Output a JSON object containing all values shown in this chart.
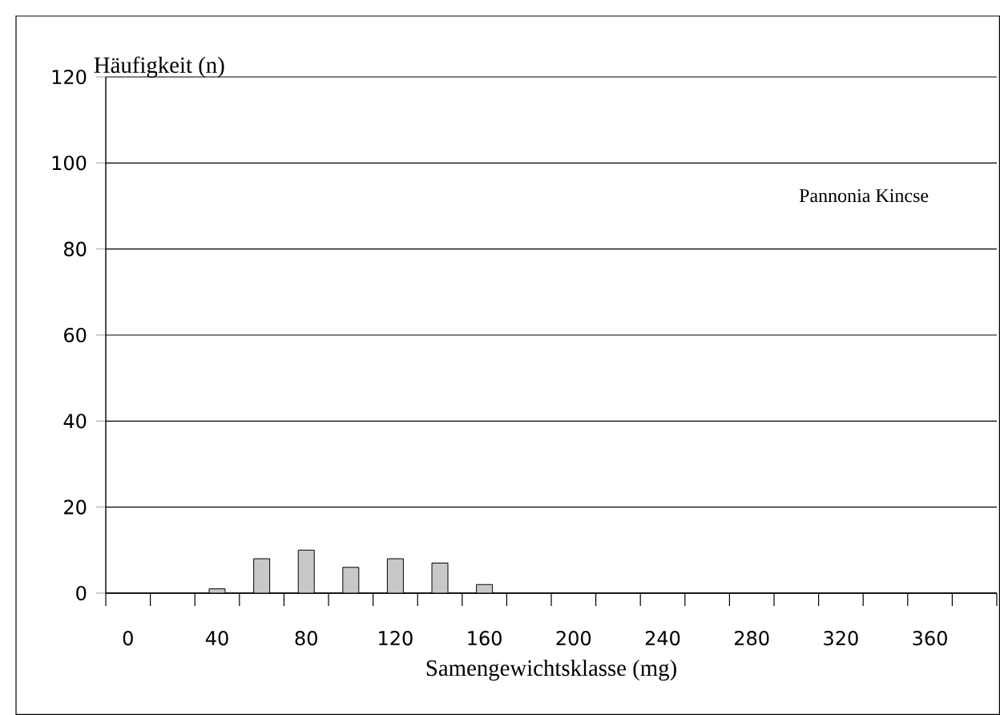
{
  "chart_data": {
    "type": "bar",
    "xlabel": "Samengewichtsklasse (mg)",
    "ylabel": "Häufigkeit (n)",
    "annotations": [
      "Pannonia Kincse"
    ],
    "categories": [
      "0",
      null,
      "40",
      null,
      "80",
      null,
      "120",
      null,
      "160",
      null,
      "200",
      null,
      "240",
      null,
      "280",
      null,
      "320",
      null,
      "360",
      null
    ],
    "values": [
      0,
      0,
      1,
      8,
      10,
      6,
      8,
      7,
      2,
      0,
      0,
      0,
      0,
      0,
      0,
      0,
      0,
      0,
      0,
      0
    ],
    "color": "#c8c8c8",
    "ylim": [
      0,
      120
    ],
    "yticks": [
      0,
      20,
      40,
      60,
      80,
      100,
      120
    ],
    "grid": "y"
  }
}
